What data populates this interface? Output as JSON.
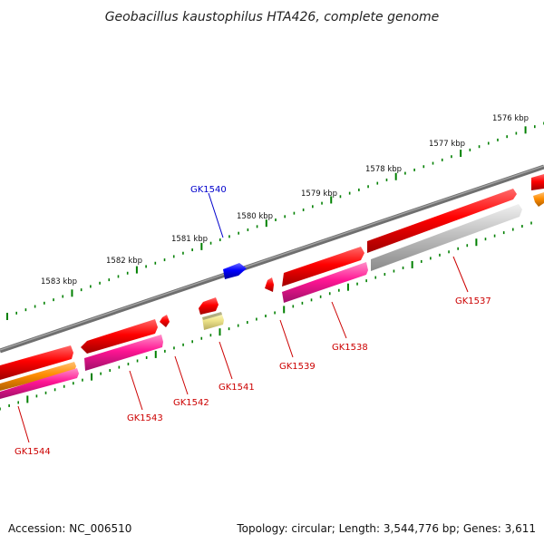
{
  "title": "Geobacillus kaustophilus HTA426, complete genome",
  "footer": {
    "accession": "Accession: NC_006510",
    "topology": "Topology: circular; Length: 3,544,776 bp; Genes: 3,611"
  },
  "scale_ticks": [
    {
      "label": "1576 kbp",
      "kbp": 1576
    },
    {
      "label": "1577 kbp",
      "kbp": 1577
    },
    {
      "label": "1578 kbp",
      "kbp": 1578
    },
    {
      "label": "1579 kbp",
      "kbp": 1579
    },
    {
      "label": "1580 kbp",
      "kbp": 1580
    },
    {
      "label": "1581 kbp",
      "kbp": 1581
    },
    {
      "label": "1582 kbp",
      "kbp": 1582
    },
    {
      "label": "1583 kbp",
      "kbp": 1583
    }
  ],
  "gene_labels": [
    {
      "name": "GK1537",
      "color": "#cc0000"
    },
    {
      "name": "GK1538",
      "color": "#cc0000"
    },
    {
      "name": "GK1539",
      "color": "#cc0000"
    },
    {
      "name": "GK1540",
      "color": "#0000cc"
    },
    {
      "name": "GK1541",
      "color": "#cc0000"
    },
    {
      "name": "GK1542",
      "color": "#cc0000"
    },
    {
      "name": "GK1543",
      "color": "#cc0000"
    },
    {
      "name": "GK1544",
      "color": "#cc0000"
    }
  ],
  "colors": {
    "backbone": "#808080",
    "cds": "#ff0000",
    "cds_blue": "#0000ff",
    "magenta": "#ff1493",
    "gray": "#c0c0c0",
    "orange": "#ff8c00",
    "pale_yellow": "#f0e68c",
    "tick": "#008000"
  }
}
